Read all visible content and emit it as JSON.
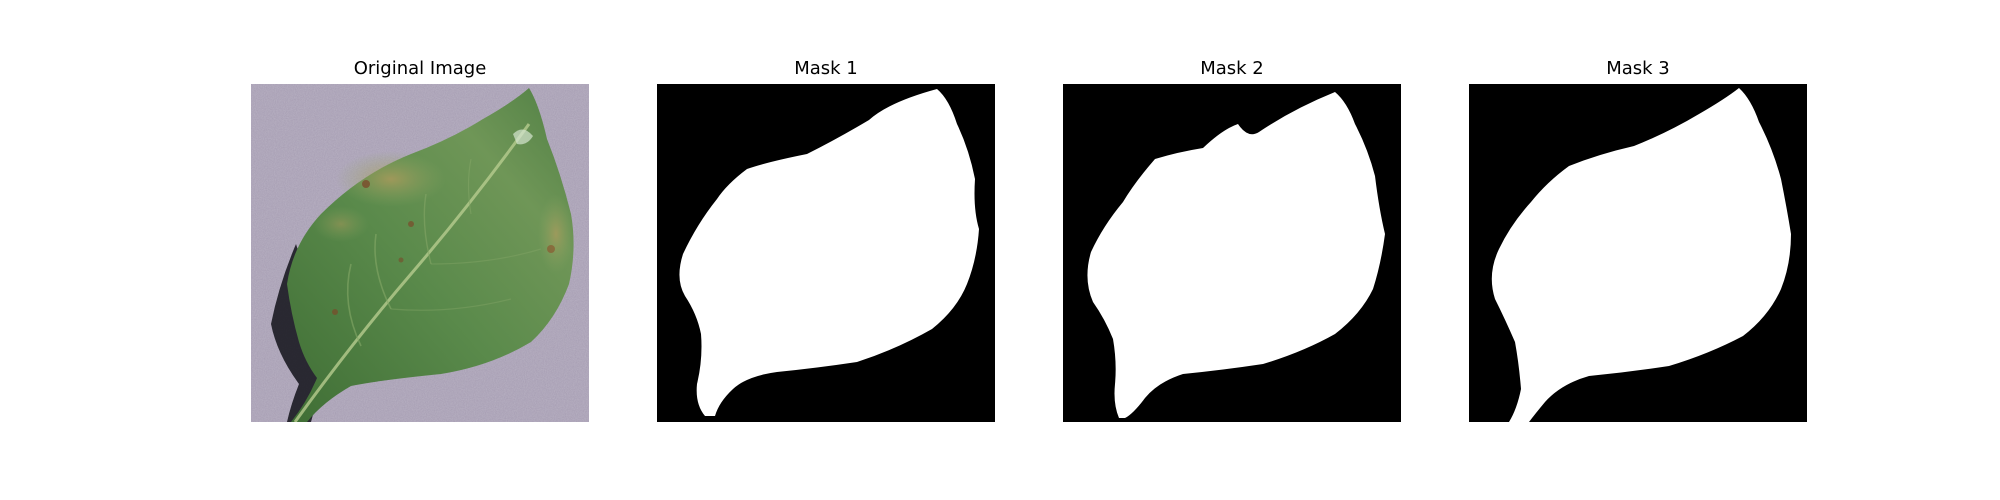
{
  "figure": {
    "panels": [
      {
        "title": "Original Image",
        "content": "photo of a green pepper leaf on a grey background"
      },
      {
        "title": "Mask 1",
        "content": "binary segmentation mask: white leaf on black"
      },
      {
        "title": "Mask 2",
        "content": "binary segmentation mask: white leaf on black"
      },
      {
        "title": "Mask 3",
        "content": "binary segmentation mask: white leaf on black"
      }
    ]
  },
  "colors": {
    "mask_foreground": "#ffffff",
    "mask_background": "#000000",
    "photo_background": "#a59cb1",
    "leaf_green": "#4f7f42",
    "leaf_highlight": "#8da866",
    "leaf_shadow": "#1b1b22"
  }
}
